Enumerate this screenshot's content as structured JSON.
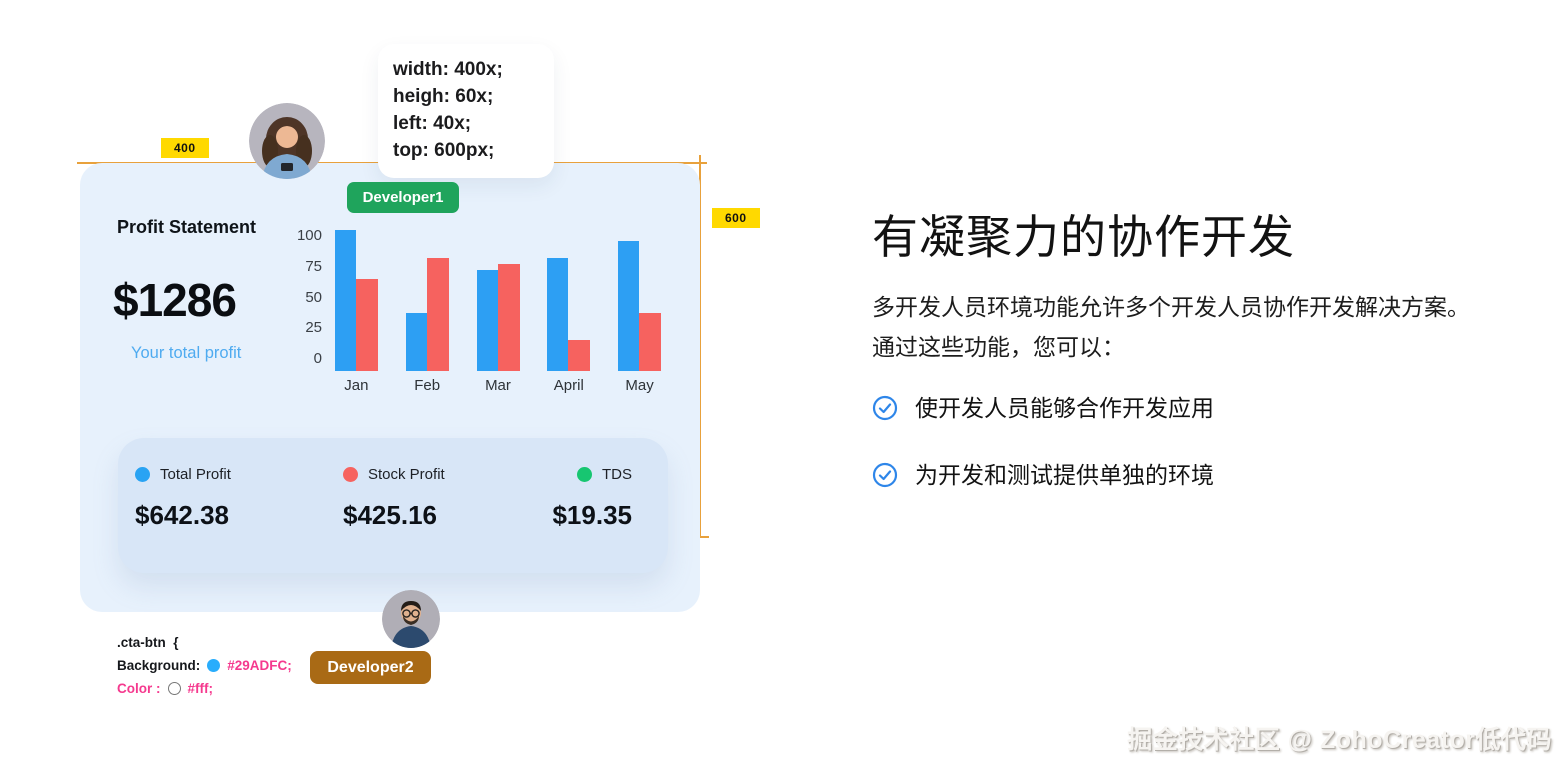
{
  "measure": {
    "width_badge": "400",
    "height_badge": "600"
  },
  "tooltip": {
    "lines": [
      "width: 400x;",
      "heigh: 60x;",
      "left: 40x;",
      "top: 600px;"
    ]
  },
  "developers": {
    "dev1": "Developer1",
    "dev2": "Developer2"
  },
  "dashboard": {
    "title": "Profit Statement",
    "total": "$1286",
    "subtitle": "Your total profit",
    "summary": [
      {
        "label": "Total Profit",
        "value": "$642.38",
        "color": "#29a3f3"
      },
      {
        "label": "Stock Profit",
        "value": "$425.16",
        "color": "#f6635f"
      },
      {
        "label": "TDS",
        "value": "$19.35",
        "color": "#17c671"
      }
    ]
  },
  "chart_data": {
    "type": "bar",
    "categories": [
      "Jan",
      "Feb",
      "Mar",
      "April",
      "May"
    ],
    "series": [
      {
        "name": "Total Profit",
        "color": "#2d9ff3",
        "values": [
          105,
          37,
          72,
          82,
          96
        ]
      },
      {
        "name": "Stock Profit",
        "color": "#f6625f",
        "values": [
          65,
          82,
          77,
          15,
          37
        ]
      }
    ],
    "y_ticks": [
      "100",
      "75",
      "50",
      "25",
      "0"
    ],
    "ylim": [
      0,
      100
    ],
    "grid": false,
    "legend_position": "summary-card-below"
  },
  "css_snippet": {
    "selector": ".cta-btn  {",
    "prop1_name": "Background:",
    "prop1_value": "#29ADFC;",
    "prop2_name": "Color :",
    "prop2_value": "#fff;"
  },
  "content": {
    "heading": "有凝聚力的协作开发",
    "paragraph": "多开发人员环境功能允许多个开发人员协作开发解决方案。通过这些功能，您可以：",
    "bullets": [
      "使开发人员能够合作开发应用",
      "为开发和测试提供单独的环境"
    ]
  },
  "watermark": "掘金技术社区 @ ZohoCreator低代码",
  "colors": {
    "guide_orange": "#e8a13c",
    "badge_yellow": "#ffd900",
    "card_bg": "#e7f1fc",
    "legend_card_bg": "#d8e6f7",
    "dev1_green": "#1fa45c",
    "dev2_brown": "#a96a15",
    "code_pink": "#f5398e",
    "accent_blue": "#29adfc",
    "check_blue": "#2e86e9"
  }
}
